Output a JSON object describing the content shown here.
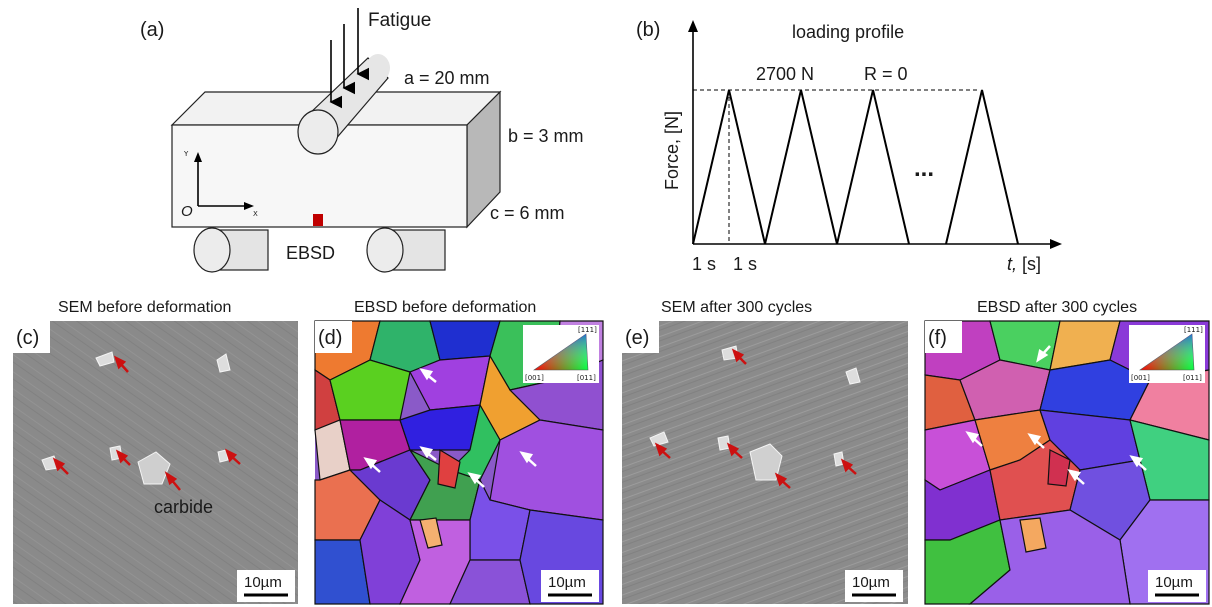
{
  "panels": {
    "a": {
      "tag": "(a)",
      "fatigue": "Fatigue",
      "dim_a": "a = 20 mm",
      "dim_b": "b = 3 mm",
      "dim_c": "c = 6 mm",
      "ebsd": "EBSD",
      "axis_y": "Y",
      "axis_x": "X",
      "origin": "O"
    },
    "b": {
      "tag": "(b)",
      "title": "loading profile",
      "peak": "2700 N",
      "ratio": "R = 0",
      "ylabel": "Force, [N]",
      "ellipsis": "...",
      "t1": "1 s",
      "t2": "1 s",
      "xlabel_var": "t,",
      "xlabel_unit": " [s]"
    },
    "c": {
      "tag": "(c)",
      "title": "SEM before deformation",
      "note": "carbide",
      "scale": "10µm"
    },
    "d": {
      "tag": "(d)",
      "title": "EBSD before deformation",
      "scale": "10µm",
      "ipf": {
        "top": "[111]",
        "left": "[001]",
        "right": "[011]"
      }
    },
    "e": {
      "tag": "(e)",
      "title": "SEM after 300 cycles",
      "scale": "10µm"
    },
    "f": {
      "tag": "(f)",
      "title": "EBSD after 300 cycles",
      "scale": "10µm",
      "ipf": {
        "top": "[111]",
        "left": "[001]",
        "right": "[011]"
      }
    }
  },
  "colors": {
    "marker": "#c00000",
    "arrow_red": "#cc1111",
    "arrow_white": "#ffffff",
    "sem_bg": "#8a8a8a"
  }
}
